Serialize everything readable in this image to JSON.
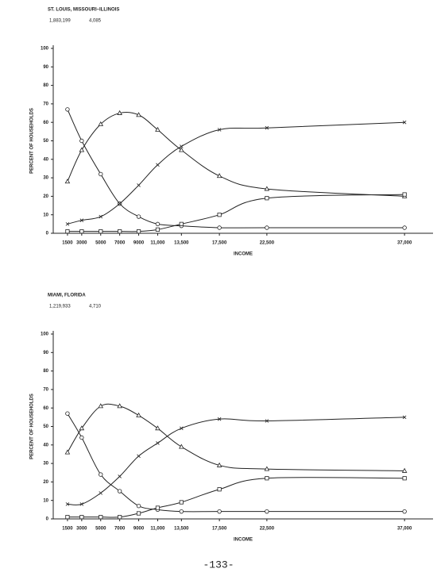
{
  "chart_data": [
    {
      "type": "line",
      "title": "ST. LOUIS, MISSOURI–ILLINOIS",
      "annotations": [
        "1,883,199",
        "4,085"
      ],
      "x_label": "INCOME",
      "y_label": "PERCENT OF HOUSEHOLDS",
      "x": [
        1500,
        3000,
        5000,
        7000,
        9000,
        11000,
        13500,
        17500,
        22500,
        37000
      ],
      "xlim": [
        0,
        40000
      ],
      "xticks": [
        1500,
        3000,
        5000,
        7000,
        9000,
        {
          "value": 11000,
          "label": "11,000"
        },
        {
          "value": 13500,
          "label": "13,500"
        },
        {
          "value": 17500,
          "label": "17,500"
        },
        {
          "value": 22500,
          "label": "22,500"
        },
        {
          "value": 37000,
          "label": "37,000"
        }
      ],
      "ylim": [
        0,
        100
      ],
      "yticks": [
        0,
        10,
        20,
        30,
        40,
        50,
        60,
        70,
        80,
        90,
        100
      ],
      "series": [
        {
          "marker": "circle",
          "color": "#222222",
          "values": [
            67,
            50,
            32,
            16,
            9,
            5,
            4,
            3,
            3,
            3
          ]
        },
        {
          "marker": "triangle",
          "color": "#222222",
          "values": [
            28,
            45,
            59,
            65,
            64,
            56,
            45,
            31,
            24,
            20
          ]
        },
        {
          "marker": "x",
          "color": "#222222",
          "values": [
            5,
            7,
            9,
            16,
            26,
            37,
            47,
            56,
            57,
            60
          ]
        },
        {
          "marker": "square",
          "color": "#222222",
          "values": [
            1,
            1,
            1,
            1,
            1,
            2,
            5,
            10,
            19,
            21
          ]
        }
      ]
    },
    {
      "type": "line",
      "title": "MIAMI, FLORIDA",
      "annotations": [
        "1,219,933",
        "4,710"
      ],
      "x_label": "INCOME",
      "y_label": "PERCENT OF HOUSEHOLDS",
      "x": [
        1500,
        3000,
        5000,
        7000,
        9000,
        11000,
        13500,
        17500,
        22500,
        37000
      ],
      "xlim": [
        0,
        40000
      ],
      "xticks": [
        1500,
        3000,
        5000,
        7000,
        9000,
        {
          "value": 11000,
          "label": "11,000"
        },
        {
          "value": 13500,
          "label": "13,500"
        },
        {
          "value": 17500,
          "label": "17,500"
        },
        {
          "value": 22500,
          "label": "22,500"
        },
        {
          "value": 37000,
          "label": "37,000"
        }
      ],
      "ylim": [
        0,
        100
      ],
      "yticks": [
        0,
        10,
        20,
        30,
        40,
        50,
        60,
        70,
        80,
        90,
        100
      ],
      "series": [
        {
          "marker": "circle",
          "color": "#222222",
          "values": [
            57,
            44,
            24,
            15,
            7,
            5,
            4,
            4,
            4,
            4
          ]
        },
        {
          "marker": "triangle",
          "color": "#222222",
          "values": [
            36,
            49,
            61,
            61,
            56,
            49,
            39,
            29,
            27,
            26
          ]
        },
        {
          "marker": "x",
          "color": "#222222",
          "values": [
            8,
            8,
            14,
            23,
            34,
            41,
            49,
            54,
            53,
            55
          ]
        },
        {
          "marker": "square",
          "color": "#222222",
          "values": [
            1,
            1,
            1,
            1,
            3,
            6,
            9,
            16,
            22,
            22
          ]
        }
      ]
    }
  ],
  "page_number": "-133-"
}
